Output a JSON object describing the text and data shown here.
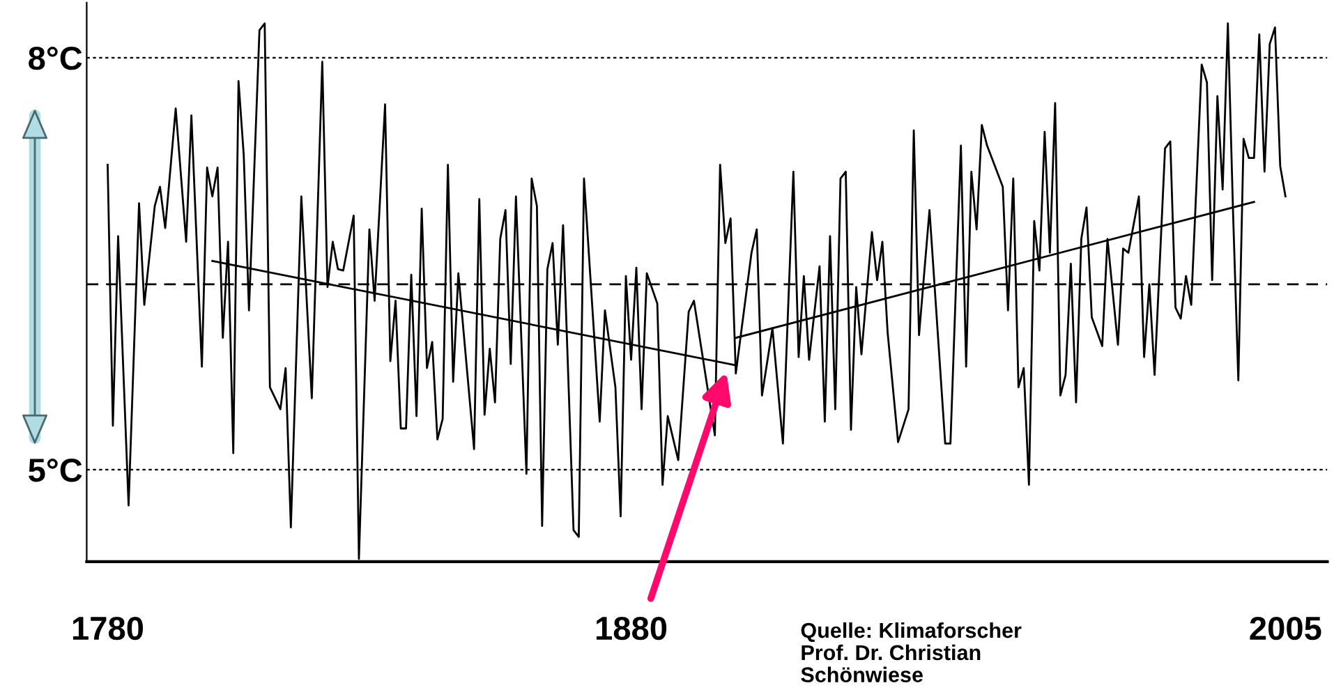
{
  "chart_data": {
    "type": "line",
    "xlim": [
      1776,
      2013
    ],
    "ylim": [
      4.33,
      8.4
    ],
    "xticks": [
      1780,
      1880,
      2005
    ],
    "yticks": [
      {
        "value": 5,
        "label": "5°C"
      },
      {
        "value": 8,
        "label": "8°C"
      }
    ],
    "grid": "y",
    "line_style": "solid",
    "ref_lines": [
      {
        "axis": "y",
        "value": 6.35,
        "label": null,
        "color": "#000000",
        "line_style": "dashed"
      }
    ],
    "annotations": [
      "Quelle: Klimaforscher\nProf. Dr. Christian\nSchönwiese"
    ],
    "series": [
      {
        "color": "#000000",
        "x": [
          1780,
          1781,
          1782,
          1784,
          1786,
          1787,
          1789,
          1790,
          1791,
          1793,
          1795,
          1796,
          1798,
          1799,
          1800,
          1801,
          1802,
          1803,
          1804,
          1805,
          1806,
          1807,
          1809,
          1810,
          1811,
          1813,
          1814,
          1815,
          1817,
          1819,
          1821,
          1822,
          1823,
          1824,
          1825,
          1827,
          1828,
          1830,
          1831,
          1833,
          1834,
          1835,
          1836,
          1837,
          1838,
          1839,
          1840,
          1841,
          1842,
          1843,
          1844,
          1845,
          1846,
          1847,
          1850,
          1851,
          1852,
          1853,
          1854,
          1855,
          1856,
          1857,
          1858,
          1860,
          1861,
          1862,
          1863,
          1864,
          1865,
          1866,
          1867,
          1869,
          1870,
          1871,
          1874,
          1875,
          1877,
          1878,
          1879,
          1880,
          1881,
          1882,
          1883,
          1885,
          1886,
          1887,
          1889,
          1891,
          1892,
          1896,
          1897,
          1898,
          1899,
          1900,
          1903,
          1904,
          1905,
          1907,
          1909,
          1911,
          1912,
          1913,
          1914,
          1916,
          1917,
          1918,
          1919,
          1920,
          1921,
          1922,
          1923,
          1924,
          1926,
          1927,
          1928,
          1929,
          1931,
          1933,
          1934,
          1935,
          1937,
          1940,
          1941,
          1943,
          1944,
          1945,
          1946,
          1947,
          1948,
          1951,
          1952,
          1953,
          1954,
          1955,
          1956,
          1957,
          1958,
          1959,
          1960,
          1961,
          1962,
          1963,
          1964,
          1965,
          1966,
          1967,
          1968,
          1970,
          1971,
          1973,
          1974,
          1975,
          1977,
          1978,
          1979,
          1980,
          1982,
          1983,
          1984,
          1985,
          1986,
          1987,
          1989,
          1990,
          1991,
          1992,
          1993,
          1994,
          1995,
          1996,
          1997,
          1998,
          1999,
          2000,
          2001,
          2002,
          2003,
          2004,
          2005
        ],
        "values": [
          7.22,
          5.32,
          6.7,
          4.74,
          6.94,
          6.2,
          6.92,
          7.06,
          6.76,
          7.63,
          6.66,
          7.58,
          5.75,
          7.2,
          6.99,
          7.2,
          5.96,
          6.66,
          5.12,
          7.83,
          7.29,
          6.16,
          8.2,
          8.25,
          5.6,
          5.44,
          5.74,
          4.58,
          6.99,
          5.52,
          7.97,
          6.33,
          6.66,
          6.46,
          6.45,
          6.85,
          4.35,
          6.75,
          6.23,
          7.66,
          5.79,
          6.23,
          5.3,
          5.3,
          6.42,
          5.39,
          6.9,
          5.74,
          5.93,
          5.22,
          5.37,
          7.22,
          5.64,
          6.43,
          5.15,
          6.97,
          5.4,
          5.88,
          5.49,
          6.68,
          6.89,
          5.77,
          6.99,
          4.97,
          7.12,
          6.92,
          4.59,
          6.46,
          6.65,
          5.91,
          6.78,
          4.56,
          4.51,
          7.12,
          5.35,
          6.16,
          5.6,
          4.66,
          6.41,
          5.8,
          6.47,
          5.44,
          6.43,
          6.21,
          4.89,
          5.39,
          5.07,
          6.15,
          6.23,
          5.25,
          7.22,
          6.65,
          6.83,
          5.7,
          6.58,
          6.75,
          5.54,
          6.03,
          5.19,
          7.17,
          5.82,
          6.41,
          5.8,
          6.48,
          5.35,
          6.7,
          5.44,
          7.12,
          7.17,
          5.29,
          6.33,
          5.84,
          6.73,
          6.38,
          6.66,
          6.0,
          5.2,
          5.44,
          7.47,
          5.98,
          6.89,
          5.19,
          5.19,
          7.36,
          5.75,
          7.17,
          6.75,
          7.51,
          7.36,
          7.06,
          6.16,
          7.12,
          5.6,
          5.74,
          4.89,
          6.81,
          6.45,
          7.46,
          6.58,
          7.67,
          5.54,
          5.69,
          6.5,
          5.49,
          6.68,
          6.91,
          6.11,
          5.9,
          6.68,
          5.91,
          6.61,
          6.58,
          6.99,
          5.82,
          6.35,
          5.69,
          7.34,
          7.39,
          6.18,
          6.1,
          6.41,
          6.2,
          7.95,
          7.82,
          6.38,
          7.72,
          7.04,
          8.25,
          6.86,
          5.65,
          7.41,
          7.27,
          7.27,
          8.17,
          7.17,
          8.1,
          8.22,
          7.21,
          6.99
        ]
      },
      {
        "color": "#000000",
        "x": [
          1800,
          1900
        ],
        "values": [
          6.52,
          5.76
        ]
      },
      {
        "color": "#000000",
        "x": [
          1900,
          1999
        ],
        "values": [
          5.96,
          6.95
        ]
      }
    ]
  }
}
